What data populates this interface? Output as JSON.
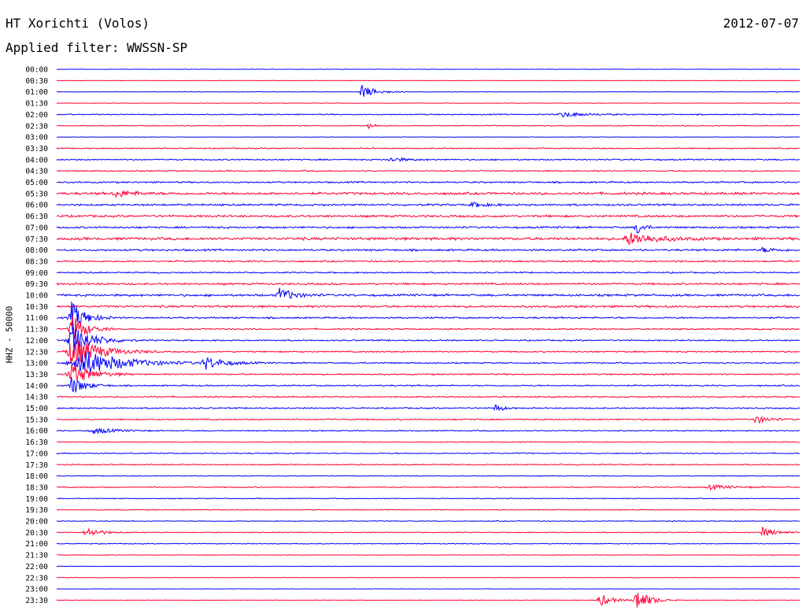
{
  "header": {
    "station": "HT Xorichti (Volos)",
    "date": "2012-07-07",
    "filter": "Applied filter: WWSSN-SP"
  },
  "chart_data": {
    "type": "line",
    "title": "HT Xorichti (Volos)",
    "ylabel": "HHZ - 50000",
    "row_labels": [
      "00:00",
      "00:30",
      "01:00",
      "01:30",
      "02:00",
      "02:30",
      "03:00",
      "03:30",
      "04:00",
      "04:30",
      "05:00",
      "05:30",
      "06:00",
      "06:30",
      "07:00",
      "07:30",
      "08:00",
      "08:30",
      "09:00",
      "09:30",
      "10:00",
      "10:30",
      "11:00",
      "11:30",
      "12:00",
      "12:30",
      "13:00",
      "13:30",
      "14:00",
      "14:30",
      "15:00",
      "15:30",
      "16:00",
      "16:30",
      "17:00",
      "17:30",
      "18:00",
      "18:30",
      "19:00",
      "19:30",
      "20:00",
      "20:30",
      "21:00",
      "21:30",
      "22:00",
      "22:30",
      "23:00",
      "23:30"
    ],
    "colors": [
      "#0000ff",
      "#ff0033"
    ],
    "row_noise": [
      0.3,
      0.3,
      0.4,
      0.4,
      0.8,
      0.6,
      0.3,
      0.8,
      1.0,
      0.9,
      1.2,
      1.8,
      1.4,
      1.6,
      1.4,
      2.0,
      1.4,
      1.2,
      1.0,
      1.4,
      1.6,
      1.6,
      1.2,
      1.0,
      1.0,
      1.0,
      1.0,
      1.0,
      1.0,
      1.0,
      1.0,
      1.0,
      0.8,
      0.6,
      0.8,
      0.8,
      0.6,
      0.8,
      0.6,
      0.6,
      0.6,
      0.6,
      0.6,
      0.4,
      0.3,
      0.4,
      0.3,
      0.3
    ],
    "events": [
      {
        "row": 2,
        "pos": 0.41,
        "amp": 9,
        "dur": 0.02
      },
      {
        "row": 4,
        "pos": 0.68,
        "amp": 3,
        "dur": 0.04
      },
      {
        "row": 5,
        "pos": 0.42,
        "amp": 4,
        "dur": 0.01
      },
      {
        "row": 8,
        "pos": 0.45,
        "amp": 3,
        "dur": 0.02
      },
      {
        "row": 11,
        "pos": 0.08,
        "amp": 4,
        "dur": 0.03
      },
      {
        "row": 12,
        "pos": 0.56,
        "amp": 3,
        "dur": 0.02
      },
      {
        "row": 14,
        "pos": 0.78,
        "amp": 10,
        "dur": 0.01
      },
      {
        "row": 15,
        "pos": 0.77,
        "amp": 8,
        "dur": 0.04
      },
      {
        "row": 16,
        "pos": 0.95,
        "amp": 3,
        "dur": 0.02
      },
      {
        "row": 20,
        "pos": 0.3,
        "amp": 9,
        "dur": 0.02
      },
      {
        "row": 22,
        "pos": 0.02,
        "amp": 20,
        "dur": 0.02
      },
      {
        "row": 23,
        "pos": 0.02,
        "amp": 20,
        "dur": 0.02
      },
      {
        "row": 24,
        "pos": 0.02,
        "amp": 20,
        "dur": 0.03
      },
      {
        "row": 25,
        "pos": 0.02,
        "amp": 20,
        "dur": 0.04
      },
      {
        "row": 26,
        "pos": 0.03,
        "amp": 18,
        "dur": 0.06
      },
      {
        "row": 26,
        "pos": 0.2,
        "amp": 8,
        "dur": 0.03
      },
      {
        "row": 27,
        "pos": 0.02,
        "amp": 14,
        "dur": 0.03
      },
      {
        "row": 28,
        "pos": 0.02,
        "amp": 12,
        "dur": 0.02
      },
      {
        "row": 30,
        "pos": 0.59,
        "amp": 6,
        "dur": 0.01
      },
      {
        "row": 31,
        "pos": 0.94,
        "amp": 5,
        "dur": 0.02
      },
      {
        "row": 32,
        "pos": 0.05,
        "amp": 4,
        "dur": 0.03
      },
      {
        "row": 37,
        "pos": 0.88,
        "amp": 3,
        "dur": 0.03
      },
      {
        "row": 41,
        "pos": 0.04,
        "amp": 7,
        "dur": 0.02
      },
      {
        "row": 41,
        "pos": 0.95,
        "amp": 6,
        "dur": 0.02
      },
      {
        "row": 47,
        "pos": 0.73,
        "amp": 8,
        "dur": 0.02
      },
      {
        "row": 47,
        "pos": 0.78,
        "amp": 14,
        "dur": 0.02
      }
    ]
  }
}
